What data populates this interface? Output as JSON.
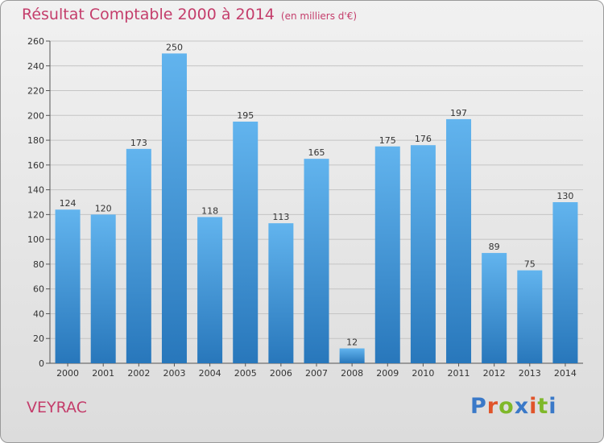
{
  "header": {
    "title": "Résultat Comptable 2000 à 2014",
    "unit": "(en milliers d'€)"
  },
  "footer": {
    "commune": "VEYRAC",
    "logo_text": "Proxiti"
  },
  "colors": {
    "title": "#c43d6b",
    "bar_top": "#62b4ee",
    "bar_bottom": "#2877bb",
    "logo_letters": [
      "#3a79c8",
      "#e0542a",
      "#7fb82a",
      "#3a79c8",
      "#e0542a",
      "#7fb82a",
      "#3a79c8"
    ]
  },
  "chart_data": {
    "type": "bar",
    "categories": [
      "2000",
      "2001",
      "2002",
      "2003",
      "2004",
      "2005",
      "2006",
      "2007",
      "2008",
      "2009",
      "2010",
      "2011",
      "2012",
      "2013",
      "2014"
    ],
    "values": [
      124,
      120,
      173,
      250,
      118,
      195,
      113,
      165,
      12,
      175,
      176,
      197,
      89,
      75,
      130
    ],
    "ylim": [
      0,
      260
    ],
    "yticks": [
      0,
      20,
      40,
      60,
      80,
      100,
      120,
      140,
      160,
      180,
      200,
      220,
      240,
      260
    ],
    "grid": true,
    "legend": "none"
  }
}
